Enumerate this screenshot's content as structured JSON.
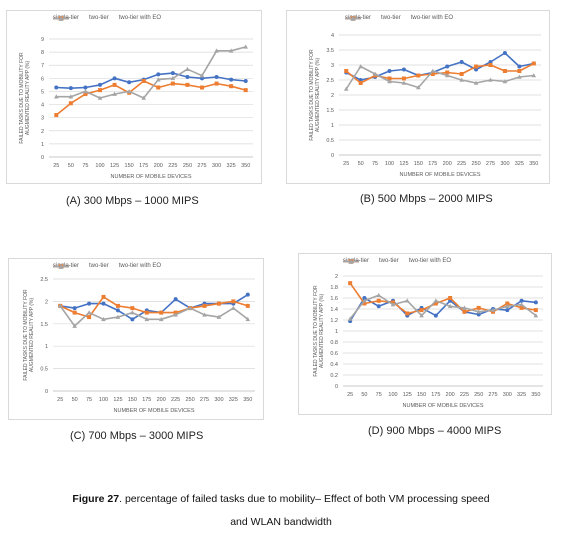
{
  "colors": {
    "single_tier": "#4472C4",
    "two_tier": "#ED7D31",
    "two_tier_eo": "#A5A5A5",
    "grid": "#d9d9d9",
    "axis_text": "#595959"
  },
  "chart_data": [
    {
      "type": "line",
      "caption": "(A) 300 Mbps – 1000 MIPS",
      "ylabel_lines": [
        "FAILED TASKS DUE TO MOBILITY FOR",
        "AUGMENTED REALITY APP (%)"
      ],
      "xlabel": "NUMBER OF MOBILE DEVICES",
      "categories": [
        "25",
        "50",
        "75",
        "100",
        "125",
        "150",
        "175",
        "200",
        "225",
        "250",
        "275",
        "300",
        "325",
        "350"
      ],
      "ylim": [
        0,
        9
      ],
      "yticks": [
        "0",
        "1",
        "2",
        "3",
        "4",
        "5",
        "6",
        "7",
        "8",
        "9"
      ],
      "grid": true,
      "legend_position": "top",
      "series": [
        {
          "name": "single-tier",
          "values": [
            5.3,
            5.25,
            5.3,
            5.5,
            6.0,
            5.7,
            5.9,
            6.3,
            6.4,
            6.1,
            6.0,
            6.1,
            5.9,
            5.8
          ]
        },
        {
          "name": "two-tier",
          "values": [
            3.2,
            4.1,
            4.8,
            5.1,
            5.5,
            4.9,
            5.8,
            5.3,
            5.6,
            5.5,
            5.3,
            5.6,
            5.4,
            5.1
          ]
        },
        {
          "name": "two-tier with EO",
          "values": [
            4.6,
            4.6,
            5.0,
            4.5,
            4.8,
            5.0,
            4.5,
            5.9,
            6.0,
            6.7,
            6.2,
            8.1,
            8.1,
            8.4
          ]
        }
      ]
    },
    {
      "type": "line",
      "caption": "(B) 500 Mbps – 2000 MIPS",
      "ylabel_lines": [
        "FAILED TASKS DUE TO MOBILITY FOR",
        "AUGMENTED REALITY APP (%)"
      ],
      "xlabel": "NUMBER OF MOBILE DEVICES",
      "categories": [
        "25",
        "50",
        "75",
        "100",
        "125",
        "150",
        "175",
        "200",
        "225",
        "250",
        "275",
        "300",
        "325",
        "350"
      ],
      "ylim": [
        0,
        4
      ],
      "yticks": [
        "0",
        "0.5",
        "1",
        "1.5",
        "2",
        "2.5",
        "3",
        "3.5",
        "4"
      ],
      "grid": true,
      "legend_position": "top",
      "series": [
        {
          "name": "single-tier",
          "values": [
            2.75,
            2.5,
            2.6,
            2.8,
            2.85,
            2.65,
            2.75,
            2.95,
            3.1,
            2.85,
            3.1,
            3.4,
            2.95,
            3.05
          ]
        },
        {
          "name": "two-tier",
          "values": [
            2.8,
            2.4,
            2.65,
            2.55,
            2.55,
            2.65,
            2.7,
            2.75,
            2.7,
            2.95,
            3.0,
            2.8,
            2.8,
            3.05
          ]
        },
        {
          "name": "two-tier with EO",
          "values": [
            2.2,
            2.95,
            2.7,
            2.45,
            2.4,
            2.25,
            2.8,
            2.65,
            2.5,
            2.4,
            2.5,
            2.45,
            2.6,
            2.65
          ]
        }
      ]
    },
    {
      "type": "line",
      "caption": "(C) 700 Mbps – 3000 MIPS",
      "ylabel_lines": [
        "FAILED TASKS DUE TO MOBILITY FOR",
        "AUGMENTED REALITY APP (%)"
      ],
      "xlabel": "NUMBER OF MOBILE DEVICES",
      "categories": [
        "25",
        "50",
        "75",
        "100",
        "125",
        "150",
        "175",
        "200",
        "225",
        "250",
        "275",
        "300",
        "325",
        "350"
      ],
      "ylim": [
        0,
        2.5
      ],
      "yticks": [
        "0",
        "0.5",
        "1",
        "1.5",
        "2",
        "2.5"
      ],
      "grid": true,
      "legend_position": "top",
      "series": [
        {
          "name": "single-tier",
          "values": [
            1.9,
            1.85,
            1.95,
            1.95,
            1.8,
            1.6,
            1.8,
            1.75,
            2.05,
            1.85,
            1.95,
            1.95,
            1.95,
            2.15
          ]
        },
        {
          "name": "two-tier",
          "values": [
            1.9,
            1.75,
            1.65,
            2.1,
            1.9,
            1.85,
            1.75,
            1.75,
            1.75,
            1.85,
            1.9,
            1.95,
            2.0,
            1.9
          ]
        },
        {
          "name": "two-tier with EO",
          "values": [
            1.9,
            1.45,
            1.75,
            1.6,
            1.65,
            1.75,
            1.6,
            1.6,
            1.7,
            1.85,
            1.7,
            1.65,
            1.85,
            1.6
          ]
        }
      ]
    },
    {
      "type": "line",
      "caption": "(D) 900 Mbps – 4000 MIPS",
      "ylabel_lines": [
        "FAILED TASKS DUE TO MOBILITY FOR",
        "AUGMENTED REALITY APP (%)"
      ],
      "xlabel": "NUMBER OF MOBILE DEVICES",
      "categories": [
        "25",
        "50",
        "75",
        "100",
        "125",
        "150",
        "175",
        "200",
        "225",
        "250",
        "275",
        "300",
        "325",
        "350"
      ],
      "ylim": [
        0,
        2
      ],
      "yticks": [
        "0",
        "0.2",
        "0.4",
        "0.6",
        "0.8",
        "1",
        "1.2",
        "1.4",
        "1.6",
        "1.8",
        "2"
      ],
      "grid": true,
      "legend_position": "top",
      "series": [
        {
          "name": "single-tier",
          "values": [
            1.18,
            1.6,
            1.45,
            1.55,
            1.28,
            1.42,
            1.28,
            1.55,
            1.35,
            1.3,
            1.4,
            1.38,
            1.55,
            1.52
          ]
        },
        {
          "name": "two-tier",
          "values": [
            1.87,
            1.5,
            1.55,
            1.52,
            1.32,
            1.38,
            1.5,
            1.6,
            1.35,
            1.42,
            1.35,
            1.5,
            1.42,
            1.38
          ]
        },
        {
          "name": "two-tier with EO",
          "values": [
            1.22,
            1.55,
            1.65,
            1.48,
            1.55,
            1.28,
            1.55,
            1.45,
            1.42,
            1.35,
            1.38,
            1.45,
            1.48,
            1.28
          ]
        }
      ]
    }
  ],
  "figure_caption": {
    "label": "Figure 27",
    "text_line1": ". percentage of failed tasks due to mobility– Effect of both VM processing speed",
    "text_line2": "and WLAN bandwidth"
  }
}
